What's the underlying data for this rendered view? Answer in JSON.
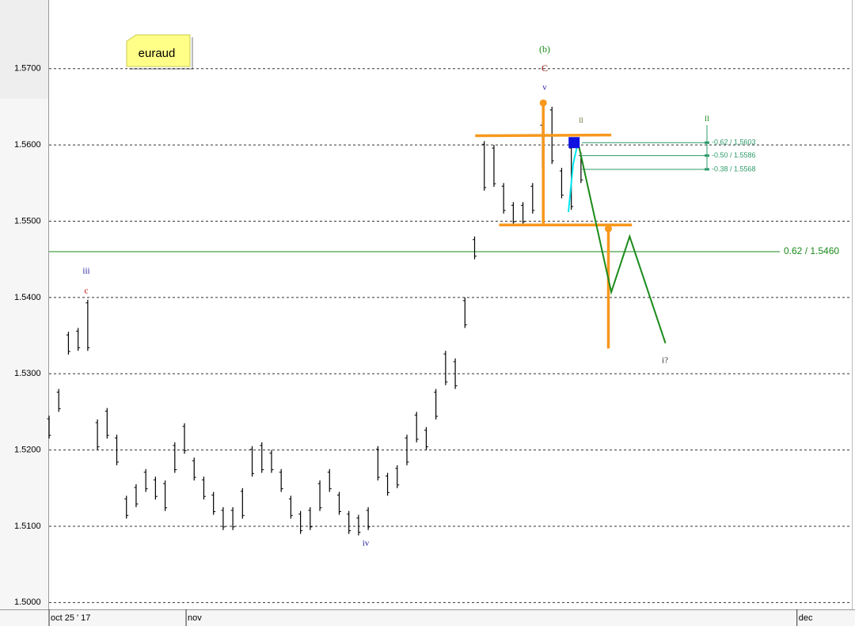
{
  "chart_data": {
    "type": "ohlc",
    "title": "euraud",
    "color": "#000000",
    "xlim": [
      0,
      250
    ],
    "ylim": [
      1.4991,
      1.579
    ],
    "grid": true,
    "yticks": [
      {
        "value": 1.5,
        "label": "1.5000"
      },
      {
        "value": 1.51,
        "label": "1.5100"
      },
      {
        "value": 1.52,
        "label": "1.5200"
      },
      {
        "value": 1.53,
        "label": "1.5300"
      },
      {
        "value": 1.54,
        "label": "1.5400"
      },
      {
        "value": 1.55,
        "label": "1.5500"
      },
      {
        "value": 1.56,
        "label": "1.5600"
      },
      {
        "value": 1.57,
        "label": "1.5700"
      }
    ],
    "xticks": [
      {
        "value": 0,
        "label": "oct 25 ' 17"
      },
      {
        "value": 42.5,
        "label": "nov"
      },
      {
        "value": 232,
        "label": "dec"
      }
    ],
    "x": [
      0,
      3,
      6,
      9,
      12,
      15,
      18,
      21,
      24,
      27,
      30,
      33,
      36,
      39,
      42,
      45,
      48,
      51,
      54,
      57,
      60,
      63,
      66,
      69,
      72,
      75,
      78,
      81,
      84,
      87,
      90,
      93,
      96,
      99,
      102,
      105,
      108,
      111,
      114,
      117,
      120,
      123,
      126,
      129,
      132,
      135,
      138,
      141,
      144,
      147,
      150,
      153,
      156,
      159,
      162,
      165
    ],
    "high": [
      1.5245,
      1.528,
      1.5355,
      1.536,
      1.5397,
      1.524,
      1.5255,
      1.522,
      1.514,
      1.5155,
      1.5175,
      1.5165,
      1.516,
      1.521,
      1.5235,
      1.519,
      1.5165,
      1.5145,
      1.5125,
      1.5125,
      1.515,
      1.5205,
      1.521,
      1.52,
      1.5175,
      1.514,
      1.512,
      1.5125,
      1.516,
      1.5175,
      1.5145,
      1.512,
      1.5115,
      1.5125,
      1.5205,
      1.517,
      1.518,
      1.522,
      1.525,
      1.523,
      1.528,
      1.533,
      1.532,
      1.54,
      1.548,
      1.5605,
      1.56,
      1.555,
      1.5525,
      1.5525,
      1.555,
      1.563,
      1.565,
      1.557,
      1.56,
      1.559
    ],
    "low": [
      1.5215,
      1.525,
      1.5325,
      1.533,
      1.533,
      1.52,
      1.5215,
      1.518,
      1.511,
      1.5125,
      1.5145,
      1.5135,
      1.512,
      1.517,
      1.5195,
      1.516,
      1.5135,
      1.5115,
      1.5095,
      1.5095,
      1.511,
      1.5165,
      1.517,
      1.517,
      1.5145,
      1.511,
      1.509,
      1.5095,
      1.512,
      1.5145,
      1.5115,
      1.509,
      1.5088,
      1.5095,
      1.516,
      1.514,
      1.515,
      1.518,
      1.521,
      1.52,
      1.524,
      1.5285,
      1.528,
      1.536,
      1.545,
      1.554,
      1.5545,
      1.551,
      1.5495,
      1.5495,
      1.551,
      1.557,
      1.5575,
      1.553,
      1.5515,
      1.555
    ],
    "levels": [
      {
        "value": 1.546,
        "label": "0.62 / 1.5460",
        "color": "#1a8a1a"
      }
    ],
    "fib_levels": [
      {
        "value": 1.5603,
        "label": "-0.62 / 1.5603"
      },
      {
        "value": 1.5586,
        "label": "-0.50 / 1.5586"
      },
      {
        "value": 1.5568,
        "label": "-0.38 / 1.5568"
      }
    ],
    "fib_color": "#2e9a6a",
    "orange_color": "#f7981d",
    "orange_lines": [
      {
        "x": [
          132.2,
          174.4
        ],
        "y": [
          1.5612,
          1.5613
        ]
      },
      {
        "x": [
          139.6,
          180.8
        ],
        "y": [
          1.5495,
          1.5495
        ]
      },
      {
        "x": [
          153.3,
          153.3
        ],
        "y": [
          1.5655,
          1.5497
        ]
      },
      {
        "x": [
          173.5,
          173.5
        ],
        "y": [
          1.549,
          1.5333
        ]
      }
    ],
    "projection": {
      "color": "#1a8a1a",
      "x": [
        164.1,
        174.4,
        180.1,
        191.2
      ],
      "y": [
        1.5603,
        1.5407,
        1.548,
        1.534
      ]
    },
    "annotations": [
      {
        "text": "(b)",
        "color": "#1a8a1a"
      },
      {
        "text": "C",
        "color": "#8b0000"
      },
      {
        "text": "v",
        "color": "#1a1aa0"
      },
      {
        "text": "iii",
        "color": "#1a1aa0"
      },
      {
        "text": "c",
        "color": "#c00000"
      },
      {
        "text": "iv",
        "color": "#1a1aa0"
      },
      {
        "text": "II",
        "color": "#1a8a1a"
      },
      {
        "text": "ll",
        "color": "#556b2f"
      },
      {
        "text": "i?",
        "color": "#333333"
      }
    ]
  }
}
